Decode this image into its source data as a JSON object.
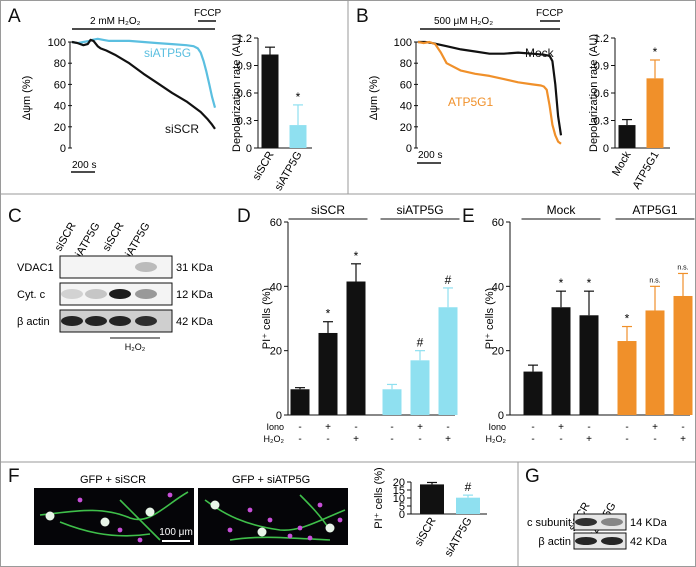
{
  "colors": {
    "black": "#111111",
    "cyan": "#5bbfe0",
    "orange": "#f0902a",
    "cyanbar": "#8fe0f0",
    "grey": "#888888",
    "frame": "#9a9a9a"
  },
  "panels": {
    "A": "A",
    "B": "B",
    "C": "C",
    "D": "D",
    "E": "E",
    "F": "F",
    "G": "G"
  },
  "chart_data": [
    {
      "id": "A-trace",
      "type": "line",
      "ylabel": "Δψm (%)",
      "treatment": "2 mM H₂O₂",
      "fccp": "FCCP",
      "scalebar": "200 s",
      "ylim": [
        0,
        100
      ],
      "yticks": [
        0,
        20,
        40,
        60,
        80,
        100
      ],
      "xlim": [
        0,
        100
      ],
      "series": [
        {
          "name": "siATP5G",
          "color": "#5bbfe0",
          "x": [
            0,
            4,
            8,
            12,
            14,
            18,
            22,
            26,
            30,
            40,
            50,
            60,
            70,
            80,
            85,
            88,
            90,
            92,
            94,
            96,
            98,
            100
          ],
          "y": [
            100,
            99,
            100,
            101,
            102,
            103,
            102,
            101,
            101,
            101,
            100,
            99,
            98,
            97,
            96,
            94,
            90,
            82,
            72,
            60,
            48,
            38
          ]
        },
        {
          "name": "siSCR",
          "color": "#111111",
          "x": [
            0,
            4,
            8,
            11,
            13,
            15,
            18,
            20,
            24,
            30,
            40,
            50,
            60,
            70,
            80,
            90,
            95,
            98,
            100
          ],
          "y": [
            100,
            99,
            97,
            98,
            102,
            101,
            96,
            94,
            92,
            88,
            80,
            70,
            61,
            52,
            44,
            34,
            27,
            22,
            18
          ]
        }
      ]
    },
    {
      "id": "A-bar",
      "type": "bar",
      "ylabel": "Depolarization rate (AU)",
      "ylim": [
        0,
        1.2
      ],
      "yticks": [
        "0",
        "0.3",
        "0.6",
        "0.9",
        "1.2"
      ],
      "categories": [
        "siSCR",
        "siATP5G"
      ],
      "values": [
        1.02,
        0.25
      ],
      "errors": [
        0.08,
        0.22
      ],
      "bar_colors": [
        "#111111",
        "#8fe0f0"
      ],
      "sig": [
        "",
        "*"
      ]
    },
    {
      "id": "B-trace",
      "type": "line",
      "ylabel": "Δψm (%)",
      "treatment": "500 μM H₂O₂",
      "fccp": "FCCP",
      "scalebar": "200 s",
      "ylim": [
        0,
        100
      ],
      "yticks": [
        0,
        20,
        40,
        60,
        80,
        100
      ],
      "xlim": [
        0,
        100
      ],
      "series": [
        {
          "name": "Mock",
          "color": "#111111",
          "x": [
            0,
            5,
            10,
            20,
            30,
            40,
            50,
            60,
            70,
            80,
            88,
            92,
            94,
            96,
            98,
            100
          ],
          "y": [
            100,
            100,
            99,
            96,
            93,
            91,
            89,
            89,
            90,
            89,
            88,
            87,
            82,
            60,
            30,
            12
          ]
        },
        {
          "name": "ATP5G1",
          "color": "#f0902a",
          "x": [
            0,
            4,
            8,
            12,
            16,
            20,
            30,
            40,
            50,
            60,
            70,
            80,
            86,
            88,
            90,
            92,
            94,
            96,
            98,
            100
          ],
          "y": [
            100,
            99,
            100,
            98,
            90,
            80,
            73,
            70,
            68,
            65,
            62,
            60,
            59,
            58,
            55,
            40,
            22,
            12,
            6,
            4
          ]
        }
      ]
    },
    {
      "id": "B-bar",
      "type": "bar",
      "ylabel": "Depolarization rate (AU)",
      "ylim": [
        0,
        1.2
      ],
      "yticks": [
        "0",
        "0.3",
        "0.6",
        "0.9",
        "1.2"
      ],
      "categories": [
        "Mock",
        "ATP5G1"
      ],
      "values": [
        0.25,
        0.76
      ],
      "errors": [
        0.06,
        0.2
      ],
      "bar_colors": [
        "#111111",
        "#f0902a"
      ],
      "sig": [
        "",
        "*"
      ]
    },
    {
      "id": "D",
      "type": "bar",
      "ylabel": "PI⁺ cells (%)",
      "ylim": [
        0,
        60
      ],
      "yticks": [
        "0",
        "20",
        "40",
        "60"
      ],
      "groups": [
        "siSCR",
        "siATP5G"
      ],
      "categories": [
        "siSCR -/-",
        "siSCR Iono",
        "siSCR H2O2",
        "siATP5G -/-",
        "siATP5G Iono",
        "siATP5G H2O2"
      ],
      "values": [
        8,
        25.5,
        41.5,
        8,
        17,
        33.5
      ],
      "errors": [
        0.5,
        3.5,
        5.5,
        1.5,
        3,
        6
      ],
      "bar_colors": [
        "#111111",
        "#111111",
        "#111111",
        "#8fe0f0",
        "#8fe0f0",
        "#8fe0f0"
      ],
      "sig": [
        "",
        "*",
        "*",
        "",
        "#",
        "#"
      ],
      "row_labels": [
        "Iono",
        "H₂O₂"
      ],
      "iono": [
        "-",
        "+",
        "-",
        "-",
        "+",
        "-"
      ],
      "h2o2": [
        "-",
        "-",
        "+",
        "-",
        "-",
        "+"
      ]
    },
    {
      "id": "E",
      "type": "bar",
      "ylabel": "PI⁺ cells (%)",
      "ylim": [
        0,
        60
      ],
      "yticks": [
        "0",
        "20",
        "40",
        "60"
      ],
      "groups": [
        "Mock",
        "ATP5G1"
      ],
      "categories": [
        "Mock -/-",
        "Mock Iono",
        "Mock H2O2",
        "ATP5G1 -/-",
        "ATP5G1 Iono",
        "ATP5G1 H2O2"
      ],
      "values": [
        13.5,
        33.5,
        31,
        23,
        32.5,
        37
      ],
      "errors": [
        2,
        5,
        7.5,
        4.5,
        7.5,
        7
      ],
      "bar_colors": [
        "#111111",
        "#111111",
        "#111111",
        "#f0902a",
        "#f0902a",
        "#f0902a"
      ],
      "sig": [
        "",
        "*",
        "*",
        "*",
        "n.s.",
        "n.s."
      ],
      "row_labels": [
        "Iono",
        "H₂O₂"
      ],
      "iono": [
        "-",
        "+",
        "-",
        "-",
        "+",
        "-"
      ],
      "h2o2": [
        "-",
        "-",
        "+",
        "-",
        "-",
        "+"
      ]
    },
    {
      "id": "F-bar",
      "type": "bar",
      "ylabel": "PI⁺ cells (%)",
      "ylim": [
        0,
        20
      ],
      "yticks": [
        "0",
        "5",
        "10",
        "15",
        "20"
      ],
      "categories": [
        "siSCR",
        "siATP5G"
      ],
      "values": [
        18.5,
        10.2
      ],
      "errors": [
        1.2,
        1.6
      ],
      "bar_colors": [
        "#111111",
        "#8fe0f0"
      ],
      "sig": [
        "",
        "#"
      ]
    }
  ],
  "blotC": {
    "lanes": [
      "siSCR",
      "siATP5G",
      "siSCR",
      "siATP5G"
    ],
    "rows": [
      {
        "label": "VDAC1",
        "kda": "31 KDa"
      },
      {
        "label": "Cyt. c",
        "kda": "12 KDa"
      },
      {
        "label": "β actin",
        "kda": "42 KDa"
      }
    ],
    "treatment": "H₂O₂"
  },
  "blotG": {
    "lanes": [
      "siSCR",
      "siATP5G"
    ],
    "rows": [
      {
        "label": "c subunit",
        "kda": "14 KDa"
      },
      {
        "label": "β actin",
        "kda": "42 KDa"
      }
    ]
  },
  "micro": {
    "left_title": "GFP + siSCR",
    "right_title": "GFP + siATP5G",
    "scalebar": "100 μm"
  }
}
